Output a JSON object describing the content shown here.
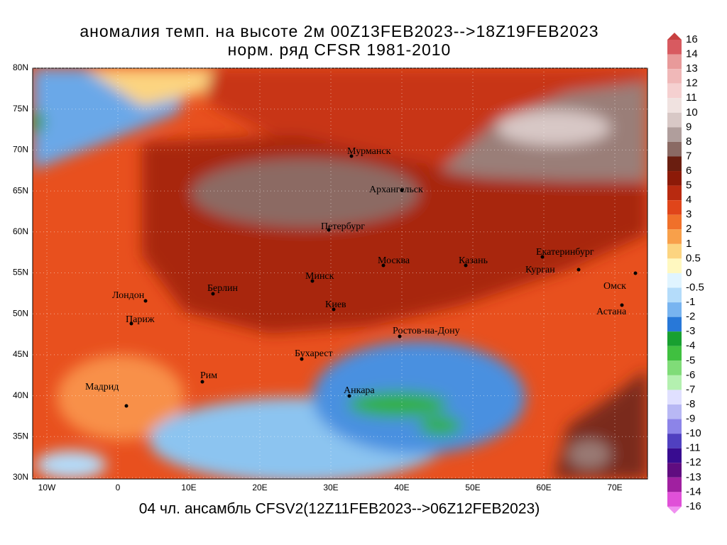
{
  "title": {
    "line1": "аномалия темп. на высоте 2м 00Z13FEB2023-->18Z19FEB2023",
    "line2": "норм. ряд CFSR 1981-2010"
  },
  "footer": "04 чл. ансамбль CFSV2(12Z11FEB2023-->06Z12FEB2023)",
  "lat_ticks": [
    {
      "value": 80,
      "label": "80N"
    },
    {
      "value": 75,
      "label": "75N"
    },
    {
      "value": 70,
      "label": "70N"
    },
    {
      "value": 65,
      "label": "65N"
    },
    {
      "value": 60,
      "label": "60N"
    },
    {
      "value": 55,
      "label": "55N"
    },
    {
      "value": 50,
      "label": "50N"
    },
    {
      "value": 45,
      "label": "45N"
    },
    {
      "value": 40,
      "label": "40N"
    },
    {
      "value": 35,
      "label": "35N"
    },
    {
      "value": 30,
      "label": "30N"
    }
  ],
  "lon_ticks": [
    {
      "value": -10,
      "label": "10W"
    },
    0,
    {
      "value": 10,
      "label": "10E"
    },
    {
      "value": 20,
      "label": "20E"
    },
    {
      "value": 30,
      "label": "30E"
    },
    {
      "value": 40,
      "label": "40E"
    },
    {
      "value": 50,
      "label": "50E"
    },
    {
      "value": 60,
      "label": "60E"
    },
    {
      "value": 70,
      "label": "70E"
    }
  ],
  "colorbar": {
    "ticks": [
      16,
      14,
      13,
      12,
      11,
      10,
      9,
      8,
      7,
      6,
      5,
      4,
      3,
      2,
      1,
      0.5,
      0,
      -0.5,
      -1,
      -2,
      -3,
      -4,
      -5,
      -6,
      -7,
      -8,
      -9,
      -10,
      -11,
      -12,
      -13,
      -14,
      -16
    ],
    "colors": [
      "#d85a60",
      "#e89a9a",
      "#f0b8b8",
      "#f5d0d0",
      "#f0e2e0",
      "#d8c8c6",
      "#b09e9c",
      "#8a6a64",
      "#6a1e10",
      "#8c1a08",
      "#b82a10",
      "#e0451a",
      "#f0702a",
      "#f8a04a",
      "#fcd480",
      "#fff8c0",
      "#e0f4ff",
      "#b4dcfa",
      "#78b4f0",
      "#2878d8",
      "#18a030",
      "#40c040",
      "#80dc78",
      "#b4f0b0",
      "#e0e0ff",
      "#b8b8f4",
      "#8c84e8",
      "#5040c0",
      "#380c90",
      "#600c80",
      "#a020a0",
      "#e050d8"
    ],
    "top_color": "#c84040",
    "bottom_color": "#f090f0"
  },
  "cities": [
    "Мурманск",
    "Архангельск",
    "Петербург",
    "Москва",
    "Казань",
    "Екатеринбург",
    "Курган",
    "Омск",
    "Астана",
    "Минск",
    "Берлин",
    "Лондон",
    "Париж",
    "Киев",
    "Ростов-на-Дону",
    "Бухарест",
    "Рим",
    "Мадрид",
    "Анкара"
  ]
}
